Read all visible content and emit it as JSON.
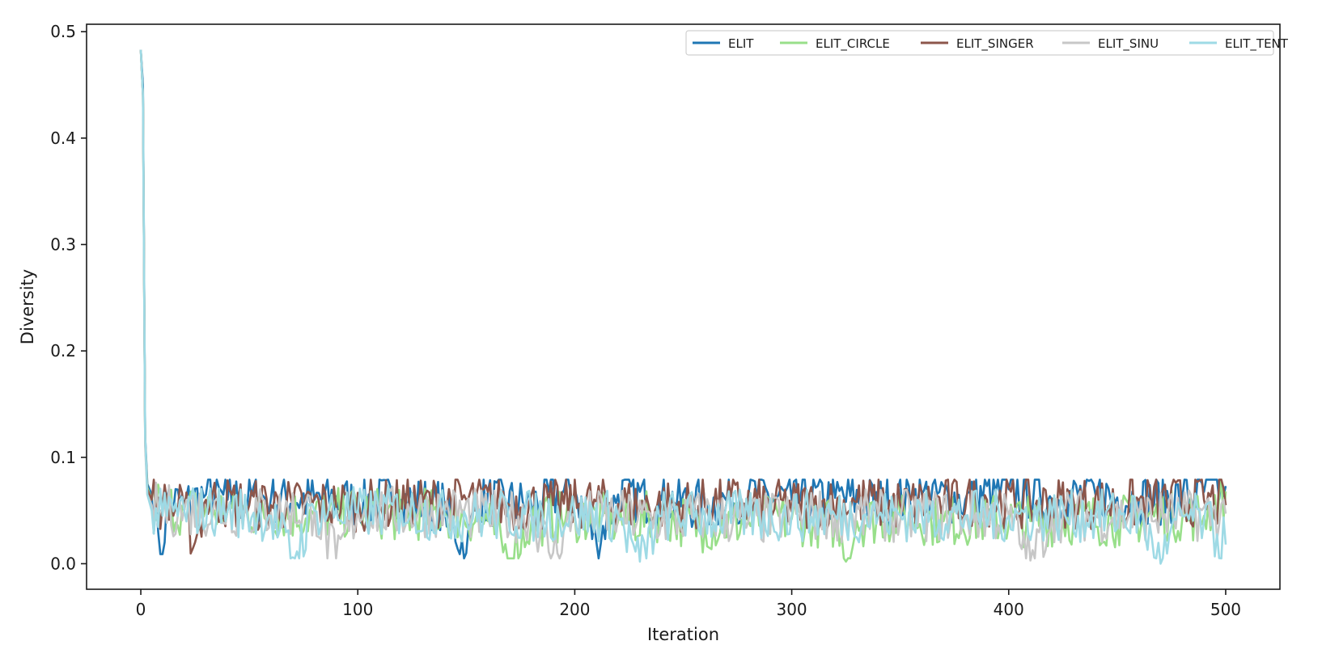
{
  "chart_data": {
    "type": "line",
    "title": "",
    "xlabel": "Iteration",
    "ylabel": "Diversity",
    "xlim": [
      -25,
      525
    ],
    "ylim": [
      -0.024,
      0.507
    ],
    "xticks": [
      0,
      100,
      200,
      300,
      400,
      500
    ],
    "yticks": [
      0.0,
      0.1,
      0.2,
      0.3,
      0.4,
      0.5
    ],
    "xtick_labels": [
      "0",
      "100",
      "200",
      "300",
      "400",
      "500"
    ],
    "ytick_labels": [
      "0.0",
      "0.1",
      "0.2",
      "0.3",
      "0.4",
      "0.5"
    ],
    "legend_position": "top-right",
    "legend_columns": 5,
    "grid": false,
    "series": [
      {
        "name": "ELIT",
        "color": "#1f77b4",
        "points": [
          [
            0,
            0.483
          ],
          [
            1,
            0.45
          ],
          [
            2,
            0.12
          ],
          [
            3,
            0.075
          ],
          [
            5,
            0.065
          ],
          [
            8,
            0.03
          ],
          [
            10,
            0.009
          ],
          [
            12,
            0.06
          ],
          [
            20,
            0.055
          ],
          [
            30,
            0.065
          ],
          [
            40,
            0.06
          ],
          [
            60,
            0.062
          ],
          [
            80,
            0.06
          ],
          [
            100,
            0.058
          ],
          [
            120,
            0.06
          ],
          [
            140,
            0.055
          ],
          [
            150,
            0.01
          ],
          [
            155,
            0.06
          ],
          [
            180,
            0.055
          ],
          [
            200,
            0.07
          ],
          [
            210,
            0.02
          ],
          [
            220,
            0.065
          ],
          [
            240,
            0.06
          ],
          [
            260,
            0.055
          ],
          [
            280,
            0.065
          ],
          [
            300,
            0.06
          ],
          [
            320,
            0.062
          ],
          [
            340,
            0.058
          ],
          [
            360,
            0.065
          ],
          [
            380,
            0.06
          ],
          [
            400,
            0.07
          ],
          [
            420,
            0.06
          ],
          [
            440,
            0.065
          ],
          [
            460,
            0.06
          ],
          [
            480,
            0.062
          ],
          [
            500,
            0.073
          ]
        ]
      },
      {
        "name": "ELIT_CIRCLE",
        "color": "#98df8a",
        "points": [
          [
            0,
            0.483
          ],
          [
            1,
            0.44
          ],
          [
            2,
            0.115
          ],
          [
            3,
            0.072
          ],
          [
            5,
            0.06
          ],
          [
            10,
            0.055
          ],
          [
            20,
            0.05
          ],
          [
            40,
            0.05
          ],
          [
            60,
            0.048
          ],
          [
            80,
            0.045
          ],
          [
            100,
            0.05
          ],
          [
            120,
            0.045
          ],
          [
            140,
            0.048
          ],
          [
            160,
            0.04
          ],
          [
            170,
            0.005
          ],
          [
            180,
            0.04
          ],
          [
            200,
            0.045
          ],
          [
            220,
            0.04
          ],
          [
            240,
            0.045
          ],
          [
            260,
            0.035
          ],
          [
            280,
            0.04
          ],
          [
            300,
            0.042
          ],
          [
            320,
            0.038
          ],
          [
            325,
            0.002
          ],
          [
            330,
            0.04
          ],
          [
            350,
            0.045
          ],
          [
            370,
            0.04
          ],
          [
            390,
            0.042
          ],
          [
            410,
            0.04
          ],
          [
            430,
            0.042
          ],
          [
            450,
            0.04
          ],
          [
            470,
            0.045
          ],
          [
            490,
            0.045
          ],
          [
            500,
            0.068
          ]
        ]
      },
      {
        "name": "ELIT_SINGER",
        "color": "#8c564b",
        "points": [
          [
            0,
            0.483
          ],
          [
            1,
            0.44
          ],
          [
            2,
            0.115
          ],
          [
            3,
            0.07
          ],
          [
            5,
            0.06
          ],
          [
            10,
            0.055
          ],
          [
            20,
            0.05
          ],
          [
            25,
            0.02
          ],
          [
            30,
            0.06
          ],
          [
            50,
            0.055
          ],
          [
            70,
            0.055
          ],
          [
            90,
            0.055
          ],
          [
            110,
            0.055
          ],
          [
            130,
            0.058
          ],
          [
            150,
            0.06
          ],
          [
            170,
            0.055
          ],
          [
            190,
            0.055
          ],
          [
            210,
            0.058
          ],
          [
            230,
            0.055
          ],
          [
            250,
            0.055
          ],
          [
            270,
            0.058
          ],
          [
            290,
            0.055
          ],
          [
            310,
            0.055
          ],
          [
            330,
            0.058
          ],
          [
            350,
            0.055
          ],
          [
            370,
            0.058
          ],
          [
            390,
            0.06
          ],
          [
            410,
            0.055
          ],
          [
            430,
            0.058
          ],
          [
            450,
            0.055
          ],
          [
            470,
            0.058
          ],
          [
            490,
            0.06
          ],
          [
            500,
            0.055
          ]
        ]
      },
      {
        "name": "ELIT_SINU",
        "color": "#c7c7c7",
        "points": [
          [
            0,
            0.483
          ],
          [
            1,
            0.44
          ],
          [
            2,
            0.11
          ],
          [
            3,
            0.065
          ],
          [
            5,
            0.055
          ],
          [
            10,
            0.05
          ],
          [
            20,
            0.05
          ],
          [
            40,
            0.05
          ],
          [
            60,
            0.048
          ],
          [
            80,
            0.05
          ],
          [
            90,
            0.005
          ],
          [
            100,
            0.05
          ],
          [
            120,
            0.048
          ],
          [
            140,
            0.05
          ],
          [
            160,
            0.045
          ],
          [
            180,
            0.045
          ],
          [
            190,
            0.01
          ],
          [
            200,
            0.045
          ],
          [
            220,
            0.045
          ],
          [
            240,
            0.04
          ],
          [
            260,
            0.045
          ],
          [
            280,
            0.04
          ],
          [
            300,
            0.045
          ],
          [
            320,
            0.045
          ],
          [
            340,
            0.045
          ],
          [
            360,
            0.045
          ],
          [
            380,
            0.045
          ],
          [
            400,
            0.045
          ],
          [
            410,
            0.003
          ],
          [
            420,
            0.045
          ],
          [
            440,
            0.045
          ],
          [
            460,
            0.045
          ],
          [
            480,
            0.045
          ],
          [
            500,
            0.047
          ]
        ]
      },
      {
        "name": "ELIT_TENT",
        "color": "#9edae5",
        "points": [
          [
            0,
            0.483
          ],
          [
            1,
            0.44
          ],
          [
            2,
            0.12
          ],
          [
            3,
            0.065
          ],
          [
            5,
            0.05
          ],
          [
            10,
            0.045
          ],
          [
            20,
            0.05
          ],
          [
            40,
            0.05
          ],
          [
            60,
            0.045
          ],
          [
            70,
            0.006
          ],
          [
            80,
            0.05
          ],
          [
            100,
            0.048
          ],
          [
            120,
            0.05
          ],
          [
            140,
            0.045
          ],
          [
            160,
            0.045
          ],
          [
            180,
            0.045
          ],
          [
            200,
            0.045
          ],
          [
            220,
            0.045
          ],
          [
            230,
            0.002
          ],
          [
            240,
            0.045
          ],
          [
            260,
            0.045
          ],
          [
            280,
            0.045
          ],
          [
            300,
            0.045
          ],
          [
            320,
            0.045
          ],
          [
            340,
            0.045
          ],
          [
            360,
            0.045
          ],
          [
            380,
            0.045
          ],
          [
            400,
            0.045
          ],
          [
            420,
            0.045
          ],
          [
            440,
            0.045
          ],
          [
            460,
            0.045
          ],
          [
            470,
            0.0
          ],
          [
            480,
            0.045
          ],
          [
            490,
            0.04
          ],
          [
            500,
            0.018
          ]
        ]
      }
    ]
  }
}
